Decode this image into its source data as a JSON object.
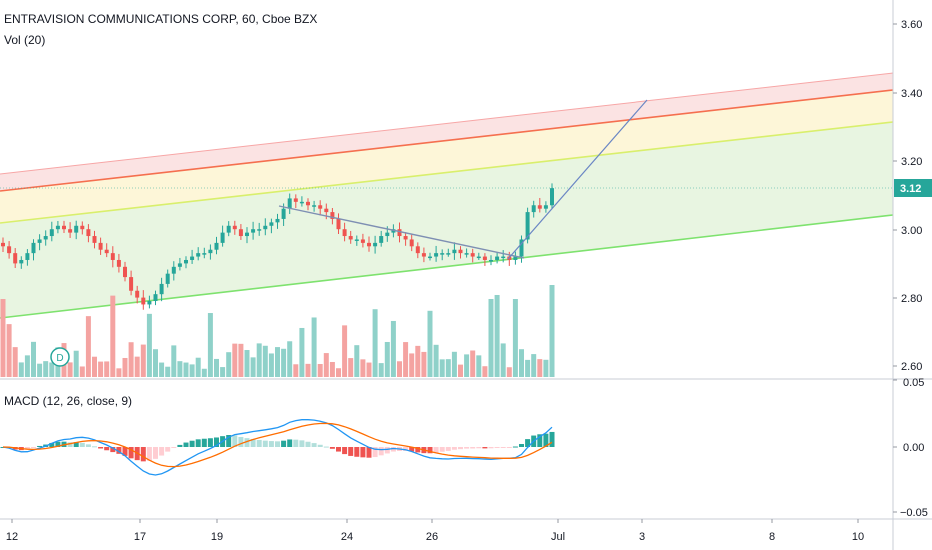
{
  "header": {
    "title": "ENTRAVISION COMMUNICATIONS CORP, 60, Cboe BZX",
    "volume_indicator": "Vol (20)",
    "macd_indicator": "MACD (12, 26, close, 9)"
  },
  "price_axis": {
    "labels": [
      "3.60",
      "3.40",
      "3.20",
      "3.00",
      "2.80",
      "2.60"
    ],
    "current_price": "3.12"
  },
  "macd_axis": {
    "labels": [
      "0.05",
      "0.00",
      "−0.05"
    ]
  },
  "time_axis": {
    "labels": [
      "12",
      "17",
      "19",
      "24",
      "26",
      "Jul",
      "3",
      "8",
      "10"
    ]
  },
  "event_marker": "D",
  "colors": {
    "up": "#26a69a",
    "down": "#ef5350",
    "channel_fill": "#e8f5e1",
    "channel_top_fill": "#fbe3e3",
    "channel_mid_fill": "#fdf6d8",
    "channel_upper_line": "#f56f4f",
    "channel_yellow_line": "#d9ef6c",
    "channel_lower_line": "#7ee26e",
    "trendline": "#7e8fb3",
    "projection": "#6a86c4",
    "macd_line": "#2196f3",
    "signal_line": "#ff6d00",
    "badge": "#26a69a"
  },
  "chart_data": {
    "type": "candlestick",
    "instrument": "ENTRAVISION COMMUNICATIONS CORP",
    "interval": "60",
    "exchange": "Cboe BZX",
    "price_range": [
      2.55,
      3.65
    ],
    "price_ticks": [
      3.6,
      3.4,
      3.2,
      3.0,
      2.8,
      2.6
    ],
    "last_price": 3.12,
    "macd_range": [
      -0.05,
      0.05
    ],
    "close_series": [
      2.95,
      2.93,
      2.9,
      2.91,
      2.93,
      2.96,
      2.97,
      2.98,
      3.0,
      3.01,
      3.0,
      2.99,
      3.01,
      3.0,
      2.98,
      2.96,
      2.94,
      2.93,
      2.91,
      2.89,
      2.86,
      2.82,
      2.8,
      2.78,
      2.79,
      2.81,
      2.84,
      2.87,
      2.89,
      2.9,
      2.91,
      2.92,
      2.93,
      2.93,
      2.94,
      2.96,
      2.99,
      3.01,
      3.0,
      2.98,
      2.99,
      3.0,
      3.0,
      3.01,
      3.02,
      3.03,
      3.06,
      3.09,
      3.08,
      3.08,
      3.07,
      3.07,
      3.06,
      3.05,
      3.03,
      3.0,
      2.98,
      2.97,
      2.97,
      2.96,
      2.95,
      2.96,
      2.98,
      2.99,
      3.0,
      2.98,
      2.97,
      2.95,
      2.93,
      2.92,
      2.92,
      2.93,
      2.93,
      2.93,
      2.94,
      2.93,
      2.93,
      2.92,
      2.92,
      2.91,
      2.91,
      2.92,
      2.92,
      2.91,
      2.92,
      2.97,
      3.05,
      3.07,
      3.06,
      3.07,
      3.12
    ]
  }
}
